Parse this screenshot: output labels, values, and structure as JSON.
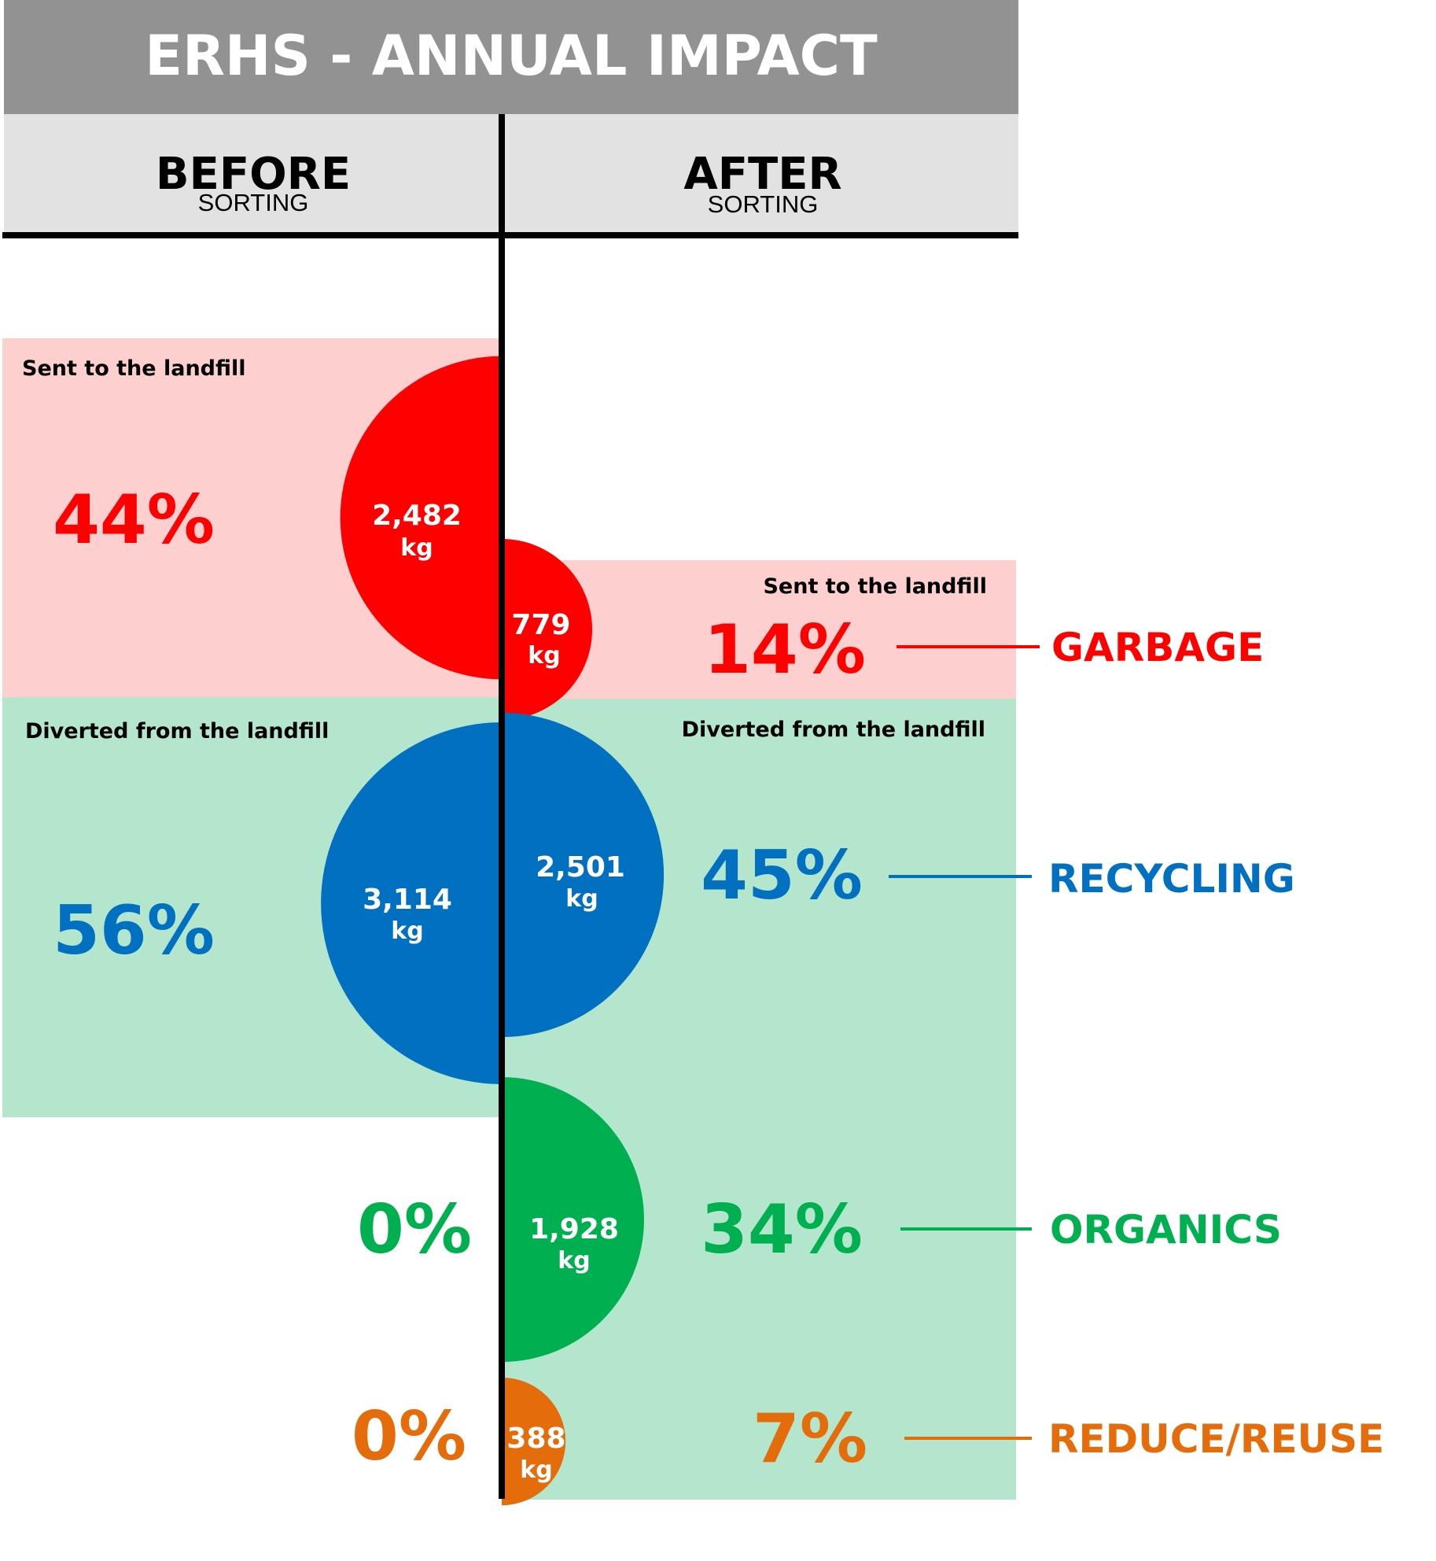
{
  "chart_data": {
    "type": "bubble-comparison",
    "title": "ERHS - ANNUAL IMPACT",
    "columns": [
      {
        "heading": "BEFORE",
        "subheading": "SORTING"
      },
      {
        "heading": "AFTER",
        "subheading": "SORTING"
      }
    ],
    "group_labels": {
      "landfill_before": "Sent to the landfill",
      "landfill_after": "Sent to the landfill",
      "diverted_before": "Diverted from the landfill",
      "diverted_after": "Diverted from the landfill"
    },
    "unit": "kg",
    "categories": [
      {
        "name": "GARBAGE",
        "color": "#ff0000",
        "bg": "#fdcfcf",
        "before": {
          "value": 2482,
          "value_label": "2,482",
          "percent": 44,
          "percent_label": "44%"
        },
        "after": {
          "value": 779,
          "value_label": "779",
          "percent": 14,
          "percent_label": "14%"
        }
      },
      {
        "name": "RECYCLING",
        "color": "#0270c1",
        "bg": "#b3e6cc",
        "before": {
          "value": 3114,
          "value_label": "3,114",
          "percent": 56,
          "percent_label": "56%"
        },
        "after": {
          "value": 2501,
          "value_label": "2,501",
          "percent": 45,
          "percent_label": "45%"
        }
      },
      {
        "name": "ORGANICS",
        "color": "#00af50",
        "bg": "#b3e6cc",
        "before": {
          "value": 0,
          "value_label": "",
          "percent": 0,
          "percent_label": "0%"
        },
        "after": {
          "value": 1928,
          "value_label": "1,928",
          "percent": 34,
          "percent_label": "34%"
        }
      },
      {
        "name": "REDUCE/REUSE",
        "color": "#e46c0a",
        "bg": "#b3e6cc",
        "before": {
          "value": 0,
          "value_label": "",
          "percent": 0,
          "percent_label": "0%"
        },
        "after": {
          "value": 388,
          "value_label": "388",
          "percent": 7,
          "percent_label": "7%"
        }
      }
    ],
    "colors": {
      "header_bg": "#929292",
      "subheader_bg": "#e2e2e2",
      "divider": "#000000"
    }
  }
}
